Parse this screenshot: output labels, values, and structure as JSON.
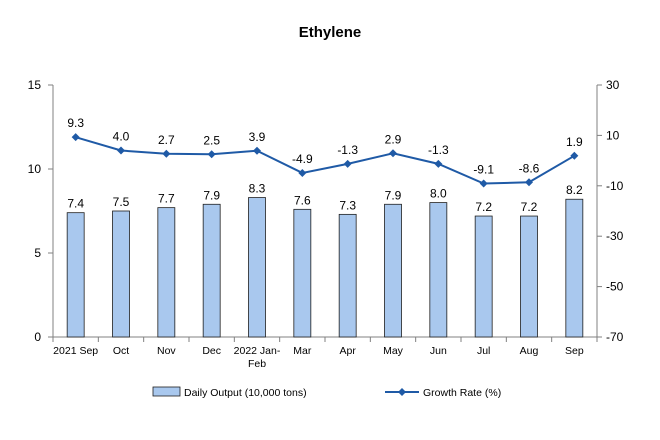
{
  "chart_data": {
    "type": "bar",
    "title": "Ethylene",
    "categories": [
      "2021 Sep",
      "Oct",
      "Nov",
      "Dec",
      "2022 Jan-Feb",
      "Mar",
      "Apr",
      "May",
      "Jun",
      "Jul",
      "Aug",
      "Sep"
    ],
    "category_lines": [
      [
        "2021 Sep"
      ],
      [
        "Oct"
      ],
      [
        "Nov"
      ],
      [
        "Dec"
      ],
      [
        "2022 Jan-",
        "Feb"
      ],
      [
        "Mar"
      ],
      [
        "Apr"
      ],
      [
        "May"
      ],
      [
        "Jun"
      ],
      [
        "Jul"
      ],
      [
        "Aug"
      ],
      [
        "Sep"
      ]
    ],
    "series": [
      {
        "name": "Daily Output (10,000 tons)",
        "type": "bar",
        "axis": "left",
        "values": [
          7.4,
          7.5,
          7.7,
          7.9,
          8.3,
          7.6,
          7.3,
          7.9,
          8.0,
          7.2,
          7.2,
          8.2
        ],
        "labels": [
          "7.4",
          "7.5",
          "7.7",
          "7.9",
          "8.3",
          "7.6",
          "7.3",
          "7.9",
          "8.0",
          "7.2",
          "7.2",
          "8.2"
        ]
      },
      {
        "name": "Growth Rate (%)",
        "type": "line",
        "axis": "right",
        "values": [
          9.3,
          4.0,
          2.7,
          2.5,
          3.9,
          -4.9,
          -1.3,
          2.9,
          -1.3,
          -9.1,
          -8.6,
          1.9
        ],
        "labels": [
          "9.3",
          "4.0",
          "2.7",
          "2.5",
          "3.9",
          "-4.9",
          "-1.3",
          "2.9",
          "-1.3",
          "-9.1",
          "-8.6",
          "1.9"
        ]
      }
    ],
    "y_left": {
      "min": 0,
      "max": 15,
      "ticks": [
        "0",
        "5",
        "10",
        "15"
      ]
    },
    "y_right": {
      "min": -70,
      "max": 30,
      "ticks": [
        "-70",
        "-50",
        "-30",
        "-10",
        "10",
        "30"
      ]
    },
    "grid": false,
    "legend_position": "bottom",
    "colors": {
      "bar_fill": "#a9c8ee",
      "bar_stroke": "#1f1f1f",
      "line": "#1f5aa6",
      "axis": "#808080"
    }
  }
}
